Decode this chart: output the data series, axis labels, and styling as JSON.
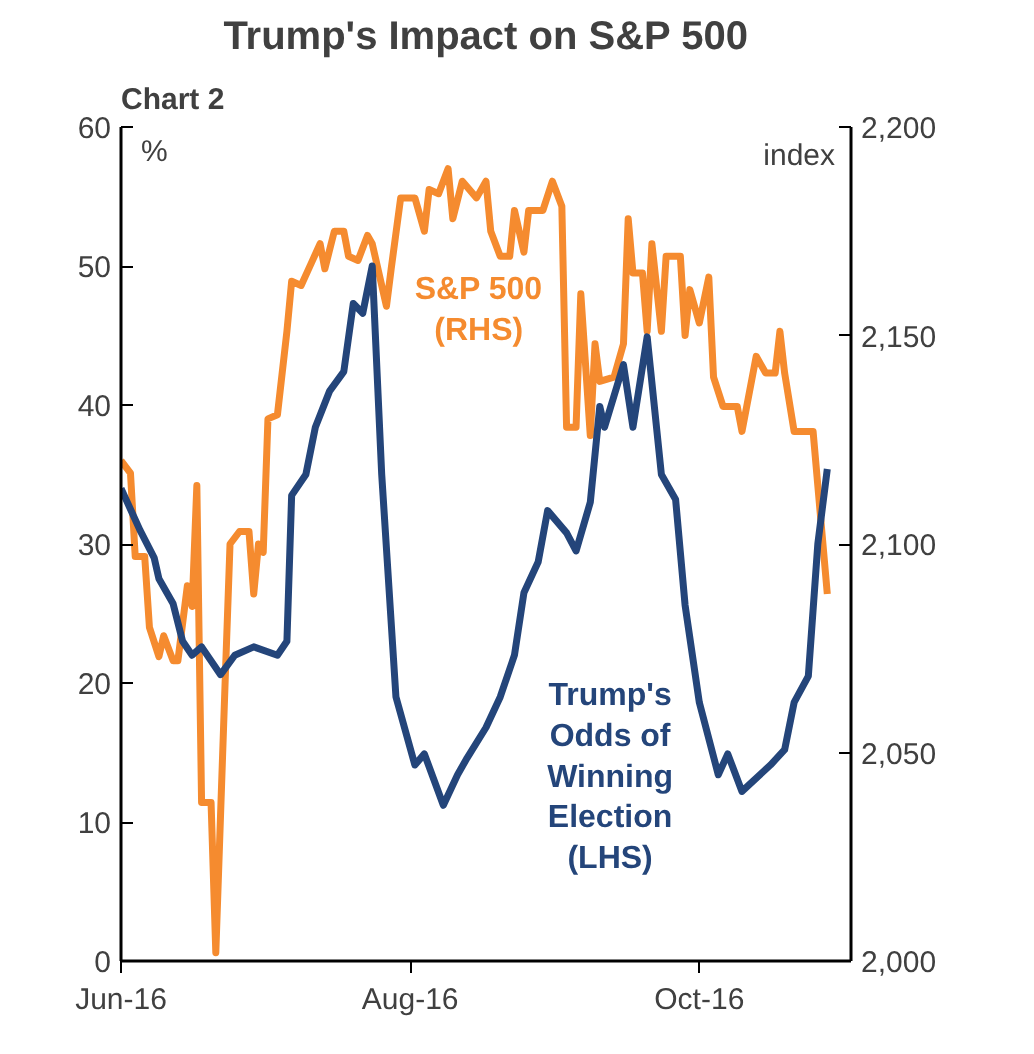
{
  "chart_data": {
    "type": "line",
    "title": "Trump's Impact on S&P 500",
    "annotations": [
      "Chart 2"
    ],
    "ylabel": "%",
    "y2label": "index",
    "xlim": [
      "2016-06-01",
      "2016-11-02"
    ],
    "xticks": [
      {
        "value": "2016-06-01",
        "label": "Jun-16"
      },
      {
        "value": "2016-08-01",
        "label": "Aug-16"
      },
      {
        "value": "2016-10-01",
        "label": "Oct-16"
      }
    ],
    "ylim": [
      0,
      60
    ],
    "yticks": [
      0,
      10,
      20,
      30,
      40,
      50,
      60
    ],
    "y2lim": [
      2000,
      2200
    ],
    "y2ticks": [
      {
        "value": 2000,
        "label": "2,000"
      },
      {
        "value": 2050,
        "label": "2,050"
      },
      {
        "value": 2100,
        "label": "2,100"
      },
      {
        "value": 2150,
        "label": "2,150"
      },
      {
        "value": 2200,
        "label": "2,200"
      }
    ],
    "grid": false,
    "line_style": "solid",
    "marker": "none",
    "series": [
      {
        "name": "S&P 500\n(RHS)",
        "color": "#f58b2f",
        "axis": "y2",
        "x": [
          "2016-06-01",
          "2016-06-03",
          "2016-06-04",
          "2016-06-06",
          "2016-06-07",
          "2016-06-09",
          "2016-06-10",
          "2016-06-12",
          "2016-06-13",
          "2016-06-15",
          "2016-06-16",
          "2016-06-17",
          "2016-06-18",
          "2016-06-20",
          "2016-06-21",
          "2016-06-23",
          "2016-06-24",
          "2016-06-26",
          "2016-06-28",
          "2016-06-29",
          "2016-06-30",
          "2016-07-01",
          "2016-07-02",
          "2016-07-04",
          "2016-07-06",
          "2016-07-07",
          "2016-07-09",
          "2016-07-11",
          "2016-07-13",
          "2016-07-14",
          "2016-07-16",
          "2016-07-18",
          "2016-07-19",
          "2016-07-21",
          "2016-07-23",
          "2016-07-24",
          "2016-07-27",
          "2016-07-28",
          "2016-07-30",
          "2016-08-02",
          "2016-08-04",
          "2016-08-05",
          "2016-08-07",
          "2016-08-09",
          "2016-08-10",
          "2016-08-12",
          "2016-08-15",
          "2016-08-17",
          "2016-08-18",
          "2016-08-20",
          "2016-08-22",
          "2016-08-23",
          "2016-08-25",
          "2016-08-26",
          "2016-08-29",
          "2016-08-31",
          "2016-09-02",
          "2016-09-03",
          "2016-09-05",
          "2016-09-06",
          "2016-09-08",
          "2016-09-09",
          "2016-09-10",
          "2016-09-13",
          "2016-09-15",
          "2016-09-16",
          "2016-09-17",
          "2016-09-19",
          "2016-09-20",
          "2016-09-21",
          "2016-09-23",
          "2016-09-24",
          "2016-09-27",
          "2016-09-28",
          "2016-09-29",
          "2016-10-01",
          "2016-10-03",
          "2016-10-04",
          "2016-10-06",
          "2016-10-09",
          "2016-10-10",
          "2016-10-13",
          "2016-10-15",
          "2016-10-17",
          "2016-10-18",
          "2016-10-19",
          "2016-10-21",
          "2016-10-25",
          "2016-10-28"
        ],
        "values": [
          2120,
          2117,
          2097,
          2097,
          2080,
          2073,
          2078,
          2072,
          2072,
          2090,
          2085,
          2114,
          2038,
          2038,
          2002,
          2068,
          2100,
          2103,
          2103,
          2088,
          2100,
          2098,
          2130,
          2131,
          2151,
          2163,
          2162,
          2167,
          2172,
          2166,
          2175,
          2175,
          2169,
          2168,
          2174,
          2172,
          2157,
          2166,
          2183,
          2183,
          2175,
          2185,
          2184,
          2190,
          2178,
          2187,
          2183,
          2187,
          2175,
          2169,
          2169,
          2180,
          2170,
          2180,
          2180,
          2187,
          2181,
          2128,
          2128,
          2160,
          2126,
          2148,
          2139,
          2140,
          2148,
          2178,
          2165,
          2165,
          2151,
          2172,
          2151,
          2169,
          2169,
          2150,
          2161,
          2153,
          2164,
          2140,
          2133,
          2133,
          2127,
          2145,
          2141,
          2141,
          2151,
          2141,
          2127,
          2127,
          2088
        ]
      },
      {
        "name": "Trump's\nOdds of\nWinning\nElection\n(LHS)",
        "color": "#24457a",
        "x": [
          "2016-06-01",
          "2016-06-05",
          "2016-06-08",
          "2016-06-09",
          "2016-06-12",
          "2016-06-14",
          "2016-06-16",
          "2016-06-18",
          "2016-06-22",
          "2016-06-25",
          "2016-06-29",
          "2016-07-04",
          "2016-07-06",
          "2016-07-07",
          "2016-07-10",
          "2016-07-12",
          "2016-07-15",
          "2016-07-18",
          "2016-07-20",
          "2016-07-22",
          "2016-07-24",
          "2016-07-26",
          "2016-07-29",
          "2016-08-02",
          "2016-08-04",
          "2016-08-08",
          "2016-08-11",
          "2016-08-13",
          "2016-08-17",
          "2016-08-20",
          "2016-08-23",
          "2016-08-25",
          "2016-08-28",
          "2016-08-30",
          "2016-09-03",
          "2016-09-05",
          "2016-09-08",
          "2016-09-10",
          "2016-09-11",
          "2016-09-15",
          "2016-09-17",
          "2016-09-20",
          "2016-09-23",
          "2016-09-26",
          "2016-09-28",
          "2016-10-01",
          "2016-10-05",
          "2016-10-07",
          "2016-10-10",
          "2016-10-16",
          "2016-10-19",
          "2016-10-21",
          "2016-10-24",
          "2016-10-26",
          "2016-10-28"
        ],
        "values": [
          34,
          31,
          29,
          27.5,
          25.7,
          23,
          22,
          22.6,
          20.6,
          22,
          22.6,
          22,
          23,
          33.5,
          35,
          38.4,
          41,
          42.4,
          47.3,
          46.6,
          50,
          35,
          19,
          14.1,
          14.9,
          11.2,
          13.4,
          14.6,
          16.8,
          19,
          22,
          26.5,
          28.7,
          32.4,
          30.8,
          29.5,
          33,
          39.9,
          38.4,
          42.9,
          38.4,
          44.9,
          35,
          33.2,
          25.6,
          18.6,
          13.4,
          14.9,
          12.2,
          14.1,
          15.2,
          18.6,
          20.5,
          30,
          35.4
        ]
      }
    ]
  }
}
